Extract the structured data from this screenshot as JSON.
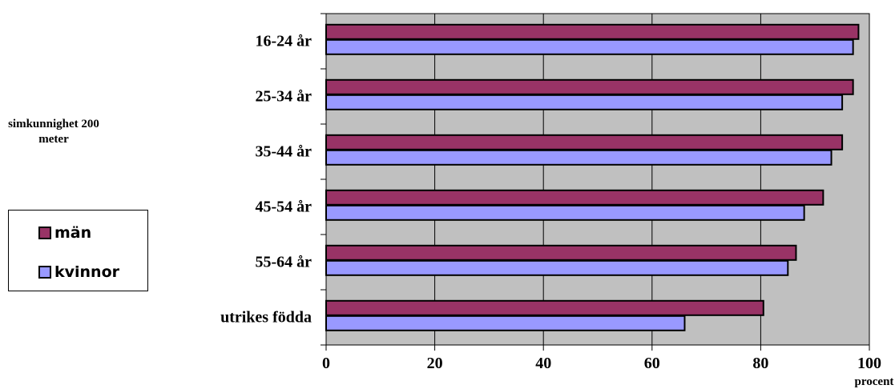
{
  "side_title": [
    "simkunnighet 200",
    "meter"
  ],
  "legend": [
    {
      "label": "män",
      "color": "#993366"
    },
    {
      "label": "kvinnor",
      "color": "#9999ff"
    }
  ],
  "chart_data": {
    "type": "bar",
    "orientation": "horizontal",
    "categories": [
      "16-24 år",
      "25-34 år",
      "35-44 år",
      "45-54 år",
      "55-64 år",
      "utrikes födda"
    ],
    "series": [
      {
        "name": "män",
        "color": "#993366",
        "values": [
          98,
          97,
          95,
          91.5,
          86.5,
          80.5
        ]
      },
      {
        "name": "kvinnor",
        "color": "#9999ff",
        "values": [
          97,
          95,
          93,
          88,
          85,
          66
        ]
      }
    ],
    "xlim": [
      0,
      100
    ],
    "xticks": [
      0,
      20,
      40,
      60,
      80,
      100
    ],
    "xlabel": "procent",
    "ylabel": "",
    "grid": "vertical",
    "plot_background": "#c0c0c0",
    "legend_position": "left"
  }
}
